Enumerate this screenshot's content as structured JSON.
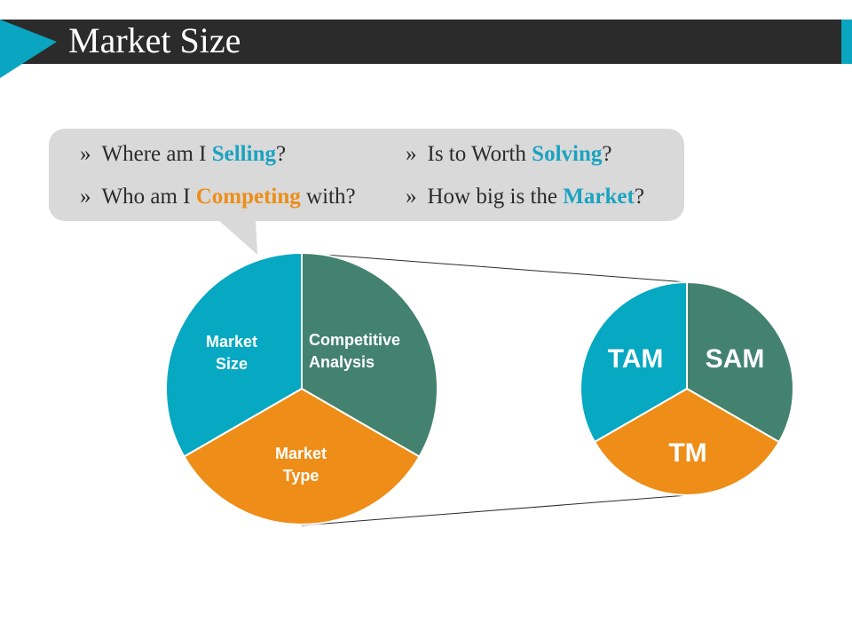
{
  "header": {
    "title": "Market Size",
    "colors": {
      "bar": "#2b2b2b",
      "accent": "#0aa5c0"
    }
  },
  "questions": [
    {
      "bullet": "»",
      "before": "Where am I ",
      "highlight": "Selling",
      "after": "?",
      "color": "#1aa3c1"
    },
    {
      "bullet": "»",
      "before": "Is to Worth ",
      "highlight": "Solving",
      "after": "?",
      "color": "#1aa3c1"
    },
    {
      "bullet": "»",
      "before": "Who am I ",
      "highlight": "Competing",
      "after": " with?",
      "color": "#ee8d17"
    },
    {
      "bullet": "»",
      "before": "How big is the ",
      "highlight": "Market",
      "after": "?",
      "color": "#1aa3c1"
    }
  ],
  "left_pie": {
    "segments": [
      {
        "line1": "Market",
        "line2": "Size",
        "color": "#06a8c2"
      },
      {
        "line1": "Competitive",
        "line2": "Analysis",
        "color": "#43826f"
      },
      {
        "line1": "Market",
        "line2": "Type",
        "color": "#ee8d17"
      }
    ]
  },
  "right_pie": {
    "segments": [
      {
        "label": "TAM",
        "color": "#06a8c2"
      },
      {
        "label": "SAM",
        "color": "#43826f"
      },
      {
        "label": "TM",
        "color": "#ee8d17"
      }
    ]
  }
}
